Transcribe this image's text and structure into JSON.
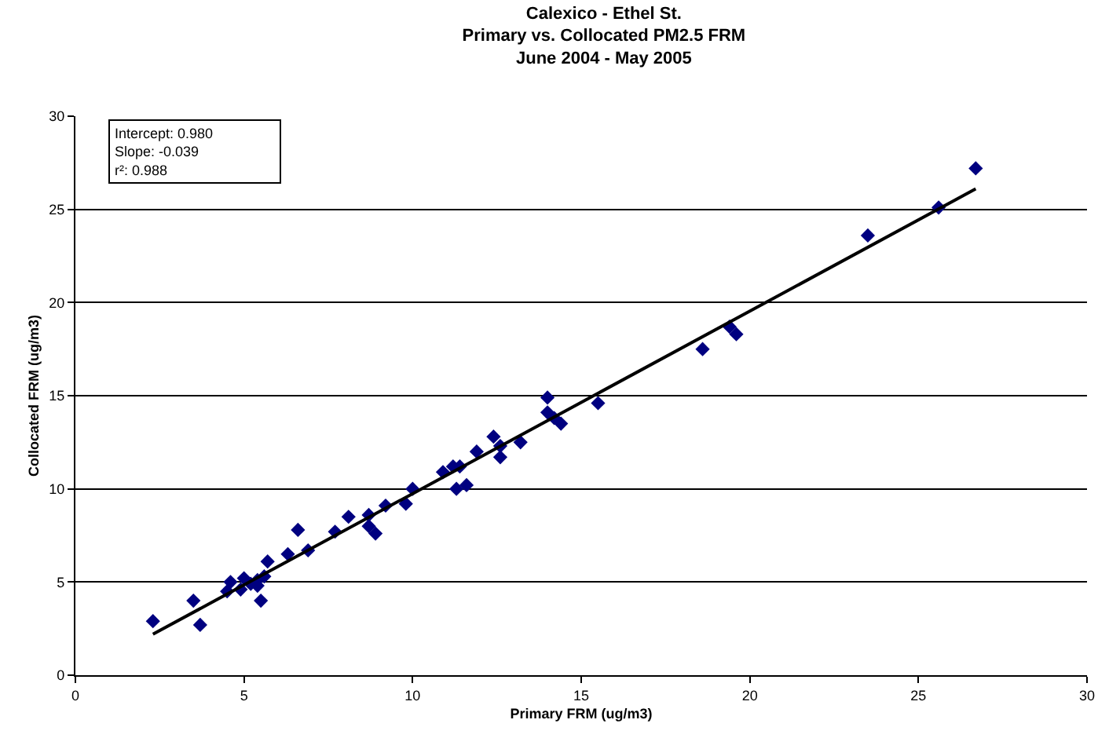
{
  "chart_data": {
    "type": "scatter",
    "title": "Calexico - Ethel St.\nPrimary vs. Collocated PM2.5 FRM\nJune 2004 - May 2005",
    "xlabel": "Primary FRM (ug/m3)",
    "ylabel": "Collocated FRM (ug/m3)",
    "annotations": [
      "Intercept: 0.980\nSlope: -0.039\nr²: 0.988"
    ],
    "xlim": [
      0,
      30
    ],
    "xticks": [
      0,
      5,
      10,
      15,
      20,
      25,
      30
    ],
    "ylim": [
      0,
      30
    ],
    "yticks": [
      0,
      5,
      10,
      15,
      20,
      25,
      30
    ],
    "grid": "y",
    "series": [
      {
        "color": "#000080",
        "marker": "diamond",
        "x": [
          2.3,
          3.5,
          3.7,
          4.5,
          4.6,
          4.9,
          5.0,
          5.2,
          5.4,
          5.4,
          5.5,
          5.6,
          5.7,
          6.3,
          6.6,
          6.9,
          7.7,
          8.1,
          8.7,
          8.7,
          8.9,
          9.2,
          9.8,
          10.0,
          10.9,
          11.2,
          11.3,
          11.4,
          11.6,
          11.9,
          12.4,
          12.6,
          12.6,
          13.2,
          14.0,
          14.0,
          14.2,
          14.4,
          15.5,
          18.6,
          19.4,
          19.6,
          23.5,
          25.6,
          26.7
        ],
        "values": [
          2.9,
          4.0,
          2.7,
          4.5,
          5.0,
          4.6,
          5.2,
          4.9,
          4.8,
          5.1,
          4.0,
          5.3,
          6.1,
          6.5,
          7.8,
          6.7,
          7.7,
          8.5,
          8.6,
          8.0,
          7.6,
          9.1,
          9.2,
          10.0,
          10.9,
          11.2,
          10.0,
          11.2,
          10.2,
          12.0,
          12.8,
          11.7,
          12.3,
          12.5,
          14.9,
          14.1,
          13.8,
          13.5,
          14.6,
          17.5,
          18.7,
          18.3,
          23.6,
          25.1,
          27.2
        ]
      },
      {
        "type": "line",
        "color": "#000000",
        "marker": "none",
        "line_style": "solid",
        "x": [
          2.3,
          26.7
        ],
        "values": [
          2.2,
          26.1
        ]
      }
    ]
  }
}
